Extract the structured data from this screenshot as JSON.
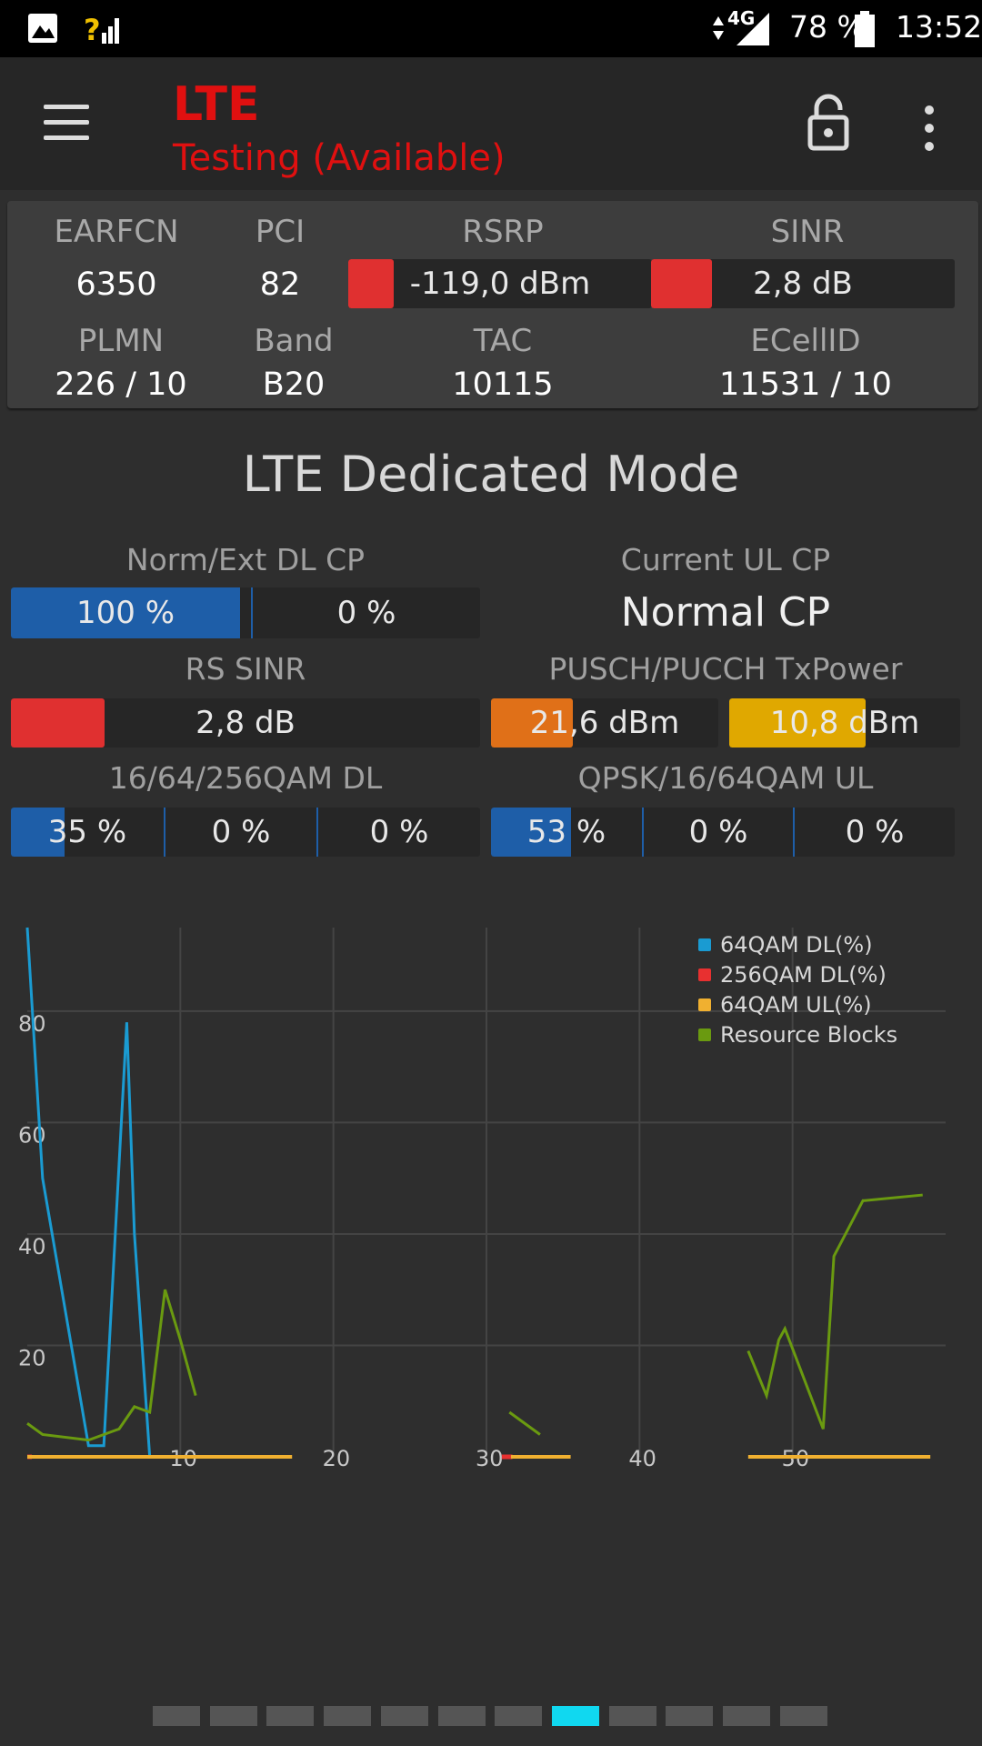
{
  "status_bar": {
    "network": "4G",
    "battery": "78 %",
    "time": "13:52",
    "icons": [
      "image-icon",
      "signal-unknown-icon",
      "data-arrows-icon",
      "signal-icon",
      "battery-icon"
    ]
  },
  "app_bar": {
    "title": "LTE",
    "subtitle": "Testing (Available)",
    "icons": [
      "menu-icon",
      "unlock-icon",
      "more-vert-icon"
    ]
  },
  "info": {
    "earfcn_label": "EARFCN",
    "earfcn_value": "6350",
    "pci_label": "PCI",
    "pci_value": "82",
    "rsrp_label": "RSRP",
    "rsrp_value": "-119,0 dBm",
    "rsrp_level": 0.15,
    "sinr_label": "SINR",
    "sinr_value": "2,8 dB",
    "sinr_level": 0.2,
    "plmn_label": "PLMN",
    "plmn_value": "226 / 10",
    "band_label": "Band",
    "band_value": "B20",
    "tac_label": "TAC",
    "tac_value": "10115",
    "ecellid_label": "ECellID",
    "ecellid_value": "11531 / 10"
  },
  "mode": {
    "title": "LTE Dedicated Mode",
    "dl_cp_label": "Norm/Ext DL CP",
    "dl_cp_norm": "100 %",
    "dl_cp_norm_level": 1.0,
    "dl_cp_ext": "0 %",
    "ul_cp_label": "Current UL CP",
    "ul_cp_value": "Normal CP",
    "rs_sinr_label": "RS SINR",
    "rs_sinr_value": "2,8 dB",
    "rs_sinr_level": 0.2,
    "txpower_label": "PUSCH/PUCCH TxPower",
    "pusch_value": "21,6 dBm",
    "pusch_level": 0.36,
    "pucch_value": "10,8 dBm",
    "pucch_level": 0.59,
    "qam_dl_label": "16/64/256QAM DL",
    "qam_dl_values": [
      "35 %",
      "0 %",
      "0 %"
    ],
    "qam_dl_level": 0.35,
    "qam_ul_label": "QPSK/16/64QAM UL",
    "qam_ul_values": [
      "53 %",
      "0 %",
      "0 %"
    ],
    "qam_ul_level": 0.53
  },
  "chart_data": {
    "type": "line",
    "xlim": [
      0,
      60
    ],
    "ylim": [
      0,
      95
    ],
    "x_ticks": [
      "10",
      "20",
      "30",
      "40",
      "50"
    ],
    "y_ticks": [
      "20",
      "40",
      "60",
      "80"
    ],
    "grid": true,
    "legend_position": "top-right",
    "colors": {
      "64QAM DL(%)": "#1a9bd2",
      "256QAM DL(%)": "#e83030",
      "64QAM UL(%)": "#f0b030",
      "Resource Blocks": "#6a9a10"
    },
    "series": [
      {
        "name": "64QAM DL(%)",
        "x": [
          0,
          1,
          4,
          5,
          6.5,
          7,
          8
        ],
        "y": [
          95,
          50,
          2,
          2,
          78,
          40,
          0
        ]
      },
      {
        "name": "256QAM DL(%)",
        "x": [
          0,
          0.3
        ],
        "y": [
          0,
          0
        ],
        "segments2": [
          [
            31,
            31.7
          ]
        ]
      },
      {
        "name": "64QAM UL(%)",
        "segments": [
          [
            0,
            17.3
          ],
          [
            31.6,
            35.5
          ],
          [
            47.1,
            59
          ]
        ],
        "y": 0
      },
      {
        "name": "Resource Blocks",
        "x": [
          0,
          1,
          4,
          6,
          7,
          8,
          9,
          10,
          11
        ],
        "y": [
          6,
          4,
          3,
          5,
          9,
          8,
          30,
          21,
          11
        ],
        "segments2x": [
          [
            31.5,
            33.5
          ],
          [
            47.1,
            48.3,
            49.1,
            49.5,
            52,
            52.7,
            54.6,
            54.7,
            58.5
          ]
        ],
        "segments2y": [
          [
            8,
            4
          ],
          [
            19,
            11,
            21,
            23,
            5,
            36,
            46,
            46,
            47
          ]
        ]
      }
    ]
  },
  "pager": {
    "count": 12,
    "active": 7
  }
}
